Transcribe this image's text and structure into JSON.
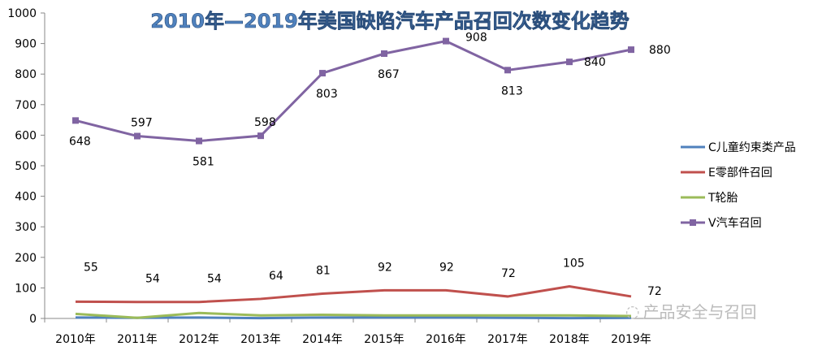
{
  "chart_data": {
    "type": "line",
    "title": "2010年—2019年美国缺陷汽车产品召回次数变化趋势",
    "categories": [
      "2010年",
      "2011年",
      "2012年",
      "2013年",
      "2014年",
      "2015年",
      "2016年",
      "2017年",
      "2018年",
      "2019年"
    ],
    "ylim": [
      0,
      1000
    ],
    "yticks": [
      0,
      100,
      200,
      300,
      400,
      500,
      600,
      700,
      800,
      900,
      1000
    ],
    "grid": false,
    "legend_position": "right",
    "series": [
      {
        "name": "C儿童约束类产品",
        "color": "#4f81bd",
        "values": [
          3,
          2,
          3,
          1,
          3,
          3,
          3,
          2,
          1,
          2
        ],
        "labels": false,
        "marker": false
      },
      {
        "name": "E零部件召回",
        "color": "#c0504d",
        "values": [
          55,
          54,
          54,
          64,
          81,
          92,
          92,
          72,
          105,
          72
        ],
        "labels": true,
        "marker": false
      },
      {
        "name": "T轮胎",
        "color": "#9bbb59",
        "values": [
          15,
          2,
          18,
          10,
          12,
          10,
          10,
          10,
          10,
          8
        ],
        "labels": false,
        "marker": false
      },
      {
        "name": "V汽车召回",
        "color": "#8064a2",
        "values": [
          648,
          597,
          581,
          598,
          803,
          867,
          908,
          813,
          840,
          880
        ],
        "labels": true,
        "marker": true
      }
    ]
  },
  "watermark": "产品安全与召回"
}
